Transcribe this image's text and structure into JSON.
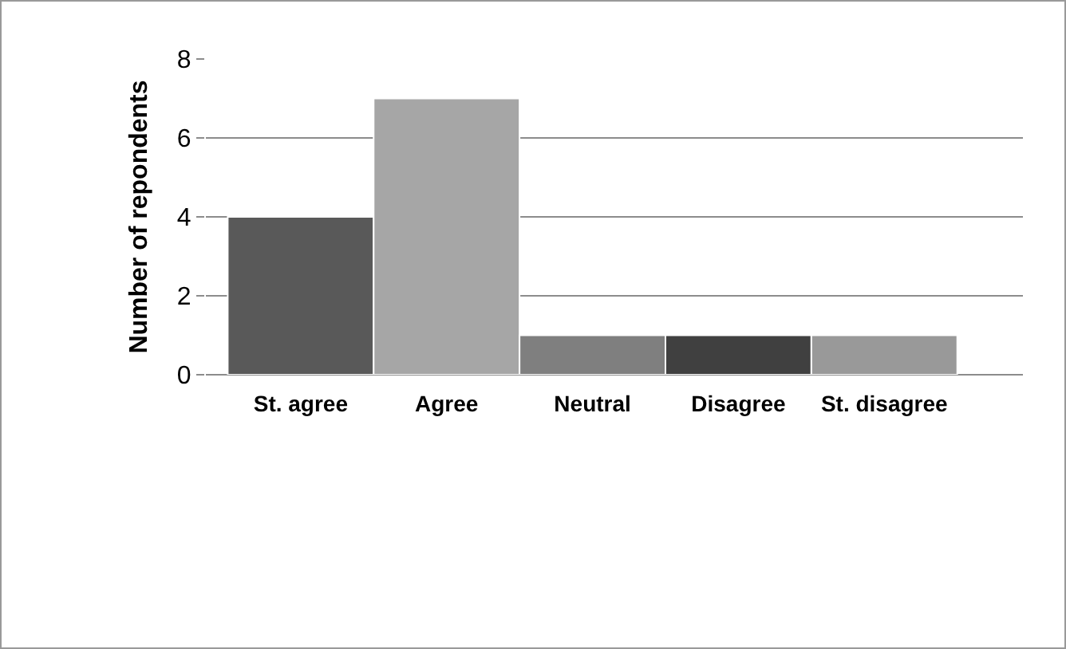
{
  "chart_data": {
    "type": "bar",
    "ylabel": "Number of repondents",
    "categories": [
      "St. agree",
      "Agree",
      "Neutral",
      "Disagree",
      "St. disagree"
    ],
    "values": [
      4,
      7,
      1,
      1,
      1
    ],
    "colors": [
      "#595959",
      "#a6a6a6",
      "#7f7f7f",
      "#404040",
      "#999999"
    ],
    "ylim": [
      0,
      8
    ],
    "yticks": [
      0,
      2,
      4,
      6,
      8
    ],
    "grid": "y"
  }
}
